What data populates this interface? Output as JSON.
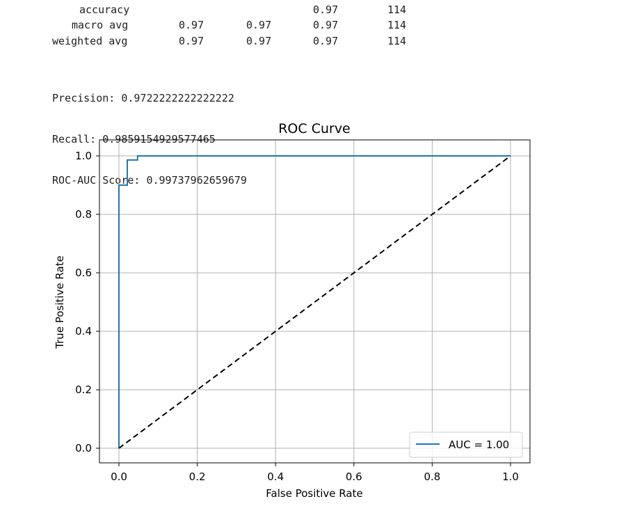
{
  "report": {
    "rows": [
      {
        "label": "accuracy",
        "precision": "",
        "recall": "",
        "f1": "0.97",
        "support": "114"
      },
      {
        "label": "macro avg",
        "precision": "0.97",
        "recall": "0.97",
        "f1": "0.97",
        "support": "114"
      },
      {
        "label": "weighted avg",
        "precision": "0.97",
        "recall": "0.97",
        "f1": "0.97",
        "support": "114"
      }
    ]
  },
  "metrics": {
    "precision_line": "Precision: 0.9722222222222222",
    "recall_line": "Recall: 0.9859154929577465",
    "roc_auc_line": "ROC-AUC Score: 0.99737962659679"
  },
  "chart_data": {
    "type": "line",
    "title": "ROC Curve",
    "xlabel": "False Positive Rate",
    "ylabel": "True Positive Rate",
    "xlim": [
      0.0,
      1.0
    ],
    "ylim": [
      0.0,
      1.0
    ],
    "xticks": [
      "0.0",
      "0.2",
      "0.4",
      "0.6",
      "0.8",
      "1.0"
    ],
    "yticks": [
      "0.0",
      "0.2",
      "0.4",
      "0.6",
      "0.8",
      "1.0"
    ],
    "grid": true,
    "legend_position": "bottom-right",
    "series": [
      {
        "name": "AUC = 1.00",
        "color": "#1f77b4",
        "style": "solid",
        "x": [
          0.0,
          0.0,
          0.0,
          0.0213,
          0.0213,
          0.0476,
          0.0476,
          1.0
        ],
        "y": [
          0.0,
          0.9,
          0.9,
          0.9,
          0.986,
          0.986,
          1.0,
          1.0
        ]
      },
      {
        "color": "#000000",
        "style": "dashed",
        "x": [
          0.0,
          1.0
        ],
        "y": [
          0.0,
          1.0
        ]
      }
    ]
  }
}
